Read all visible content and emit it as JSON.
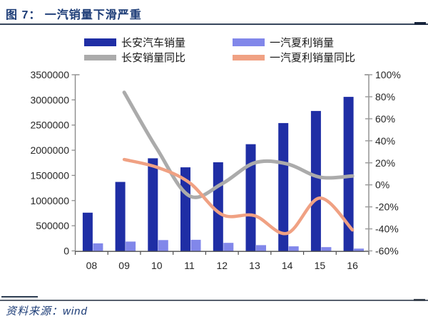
{
  "header": {
    "title": "图 7：  一汽销量下滑严重"
  },
  "legend": {
    "items": [
      {
        "label": "长安汽车销量",
        "color": "#1F2EA5",
        "type": "bar"
      },
      {
        "label": "一汽夏利销量",
        "color": "#8187EA",
        "type": "bar"
      },
      {
        "label": "长安销量同比",
        "color": "#ABABAB",
        "type": "line"
      },
      {
        "label": "一汽夏利销量同比",
        "color": "#F0A183",
        "type": "line"
      }
    ]
  },
  "chart_data": {
    "type": "combo_bar_line",
    "title": "图 7: 一汽销量下滑严重",
    "categories": [
      "08",
      "09",
      "10",
      "11",
      "12",
      "13",
      "14",
      "15",
      "16"
    ],
    "bar_series": [
      {
        "id": "changan-sales",
        "name": "长安汽车销量",
        "axis": "left",
        "color": "#1F2EA5",
        "values": [
          760000,
          1370000,
          1840000,
          1660000,
          1760000,
          2120000,
          2540000,
          2780000,
          3060000
        ]
      },
      {
        "id": "xiali-sales",
        "name": "一汽夏利销量",
        "axis": "left",
        "color": "#8187EA",
        "values": [
          150000,
          185000,
          215000,
          220000,
          160000,
          115000,
          90000,
          75000,
          45000
        ]
      }
    ],
    "line_series": [
      {
        "id": "changan-yoy",
        "name": "长安销量同比",
        "axis": "right",
        "color": "#ABABAB",
        "width": 5,
        "values_pct": [
          null,
          84,
          33,
          -10,
          1,
          20,
          19,
          7,
          8
        ]
      },
      {
        "id": "xiali-yoy",
        "name": "一汽夏利销量同比",
        "axis": "right",
        "color": "#F0A183",
        "width": 4.5,
        "values_pct": [
          null,
          23,
          16,
          2,
          -27,
          -28,
          -44,
          -12,
          -41
        ]
      }
    ],
    "left_axis": {
      "min": 0,
      "max": 3500000,
      "tick_labels": [
        "3500000",
        "3000000",
        "2500000",
        "2000000",
        "1500000",
        "1000000",
        "500000",
        "0"
      ]
    },
    "right_axis": {
      "min": -60,
      "max": 100,
      "tick_labels": [
        "100%",
        "80%",
        "60%",
        "40%",
        "20%",
        "0%",
        "-20%",
        "-40%",
        "-60%"
      ]
    },
    "grid": false,
    "legend_position": "top"
  },
  "footer": {
    "source_label": "资料来源：wind"
  }
}
